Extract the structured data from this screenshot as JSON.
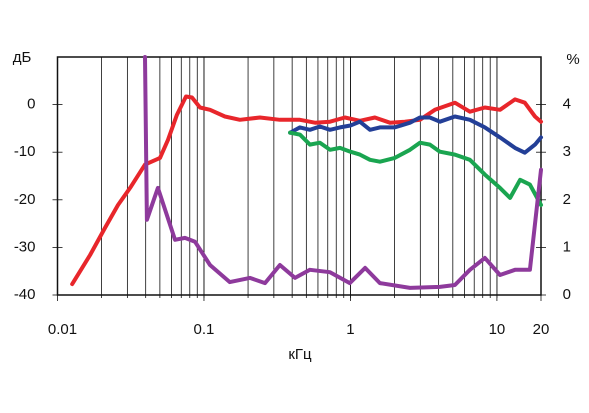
{
  "chart_data": {
    "type": "line",
    "ylabel": "дБ",
    "y2label": "%",
    "xlabel": "кГц",
    "xscale": "log",
    "grid": "x-minor",
    "xlim": [
      0.01,
      20
    ],
    "xticks": [
      0.01,
      0.1,
      1,
      10,
      20
    ],
    "ylim": [
      -40,
      10
    ],
    "yticks": [
      0,
      -10,
      -20,
      -30,
      -40
    ],
    "y2lim": [
      0,
      5
    ],
    "y2ticks": [
      4,
      3,
      2,
      1,
      0
    ],
    "series": [
      {
        "color": "#e8262b",
        "axis": "y",
        "x": [
          0.0126,
          0.0167,
          0.0211,
          0.0259,
          0.0313,
          0.0396,
          0.0501,
          0.0568,
          0.0654,
          0.0754,
          0.0828,
          0.0939,
          0.11,
          0.139,
          0.176,
          0.241,
          0.33,
          0.452,
          0.573,
          0.725,
          0.917,
          1.16,
          1.47,
          1.86,
          2.35,
          2.98,
          3.77,
          5.17,
          6.54,
          8.28,
          10.5,
          13.3,
          15.5,
          18.2,
          20
        ],
        "values": [
          -37.7,
          -31.6,
          -25.9,
          -21.1,
          -17.5,
          -12.6,
          -11.2,
          -7.4,
          -2.1,
          1.7,
          1.5,
          -0.6,
          -1.1,
          -2.5,
          -3.2,
          -2.7,
          -3.2,
          -3.2,
          -3.8,
          -3.6,
          -2.7,
          -3.4,
          -2.7,
          -3.8,
          -3.6,
          -3.2,
          -1.1,
          0.4,
          -1.5,
          -0.6,
          -1.1,
          1.1,
          0.4,
          -2.5,
          -3.6
        ]
      },
      {
        "color": "#233f97",
        "axis": "y",
        "x": [
          0.387,
          0.452,
          0.529,
          0.619,
          0.725,
          0.848,
          1.0,
          1.16,
          1.36,
          1.59,
          2.01,
          2.55,
          2.98,
          3.49,
          4.08,
          5.17,
          6.54,
          8.28,
          10.5,
          13.3,
          15.5,
          18.2,
          20
        ],
        "values": [
          -5.9,
          -4.8,
          -5.3,
          -4.6,
          -5.3,
          -4.8,
          -4.4,
          -3.6,
          -5.3,
          -4.8,
          -4.8,
          -3.8,
          -2.7,
          -2.7,
          -3.6,
          -2.5,
          -3.2,
          -4.8,
          -6.9,
          -9.1,
          -10.1,
          -8.4,
          -6.9
        ]
      },
      {
        "color": "#1aa550",
        "axis": "y",
        "x": [
          0.387,
          0.452,
          0.529,
          0.619,
          0.725,
          0.848,
          1.0,
          1.16,
          1.36,
          1.59,
          2.01,
          2.55,
          2.98,
          3.49,
          4.08,
          5.17,
          6.54,
          8.28,
          10.5,
          12.3,
          14.4,
          16.8,
          20
        ],
        "values": [
          -5.9,
          -6.3,
          -8.4,
          -8.0,
          -9.5,
          -9.1,
          -9.9,
          -10.5,
          -11.6,
          -12.0,
          -11.2,
          -9.5,
          -8.0,
          -8.4,
          -9.9,
          -10.5,
          -11.6,
          -14.7,
          -17.5,
          -19.6,
          -15.8,
          -16.8,
          -21.1
        ]
      },
      {
        "color": "#8e3a9c",
        "axis": "y2",
        "x": [
          0.0396,
          0.0408,
          0.0485,
          0.0634,
          0.0742,
          0.0868,
          0.11,
          0.15,
          0.206,
          0.261,
          0.33,
          0.418,
          0.529,
          0.725,
          0.99,
          1.26,
          1.59,
          2.55,
          4.08,
          5.17,
          6.54,
          8.28,
          10.5,
          13.3,
          16.8,
          20
        ],
        "values": [
          5.0,
          1.58,
          2.25,
          1.16,
          1.2,
          1.12,
          0.63,
          0.27,
          0.36,
          0.25,
          0.63,
          0.36,
          0.53,
          0.48,
          0.25,
          0.57,
          0.25,
          0.15,
          0.17,
          0.21,
          0.53,
          0.78,
          0.42,
          0.53,
          0.53,
          2.63
        ]
      }
    ]
  }
}
